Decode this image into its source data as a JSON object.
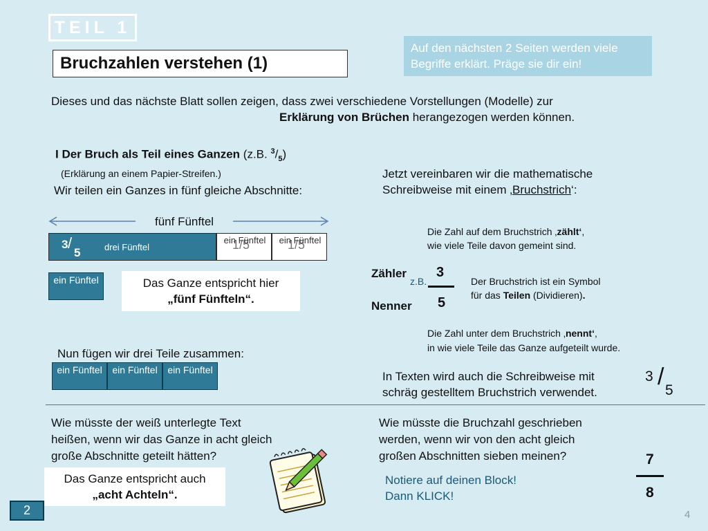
{
  "header": {
    "teil": "TEIL 1",
    "title": "Bruchzahlen verstehen (1)",
    "note": "Auf den nächsten 2 Seiten werden viele Begriffe erklärt. Präge sie dir ein!"
  },
  "intro": {
    "line1": "Dieses und das nächste Blatt sollen zeigen, dass zwei verschiedene Vorstellungen (Modelle) zur",
    "line2_bold": "Erklärung von Brüchen",
    "line2_rest": " herangezogen werden können."
  },
  "section1": {
    "heading_bold": "I Der Bruch als Teil eines Ganzen",
    "heading_rest": " (z.B. ",
    "heading_num": "3",
    "heading_den": "5",
    "heading_close": ")",
    "sub": "(Erklärung an einem Papier-Streifen.)",
    "divide_text": "Wir teilen ein Ganzes in fünf gleiche Abschnitte:",
    "arrow_label": "fünf Fünftel"
  },
  "strip": {
    "dark_num": "3",
    "dark_den": "5",
    "dark_label": "drei Fünftel",
    "light_segments": [
      {
        "label": "ein Fünftel",
        "frac": "1/5"
      },
      {
        "label": "ein Fünftel",
        "frac": "1/5"
      }
    ]
  },
  "single_tile": "ein Fünftel",
  "ganzes_box": {
    "line1": "Das Ganze entspricht hier",
    "line2": "„fünf Fünfteln“."
  },
  "combine": {
    "text": "Nun fügen wir drei Teile zusammen:",
    "tiles": [
      "ein Fünftel",
      "ein Fünftel",
      "ein Fünftel"
    ]
  },
  "right": {
    "intro_line1": "Jetzt vereinbaren wir die mathematische",
    "intro_line2_pre": "Schreibweise mit einem ‚",
    "intro_line2_u": "Bruchstrich",
    "intro_line2_post": "‘:",
    "zahl_top_pre": "Die Zahl auf dem Bruchstrich ‚",
    "zahl_top_b": "zählt‘",
    "zahl_top_post": ",",
    "zahl_top_line2": "wie viele Teile davon  gemeint sind.",
    "zaehler": "Zähler",
    "nenner": "Nenner",
    "zb": "z.B.",
    "num": "3",
    "den": "5",
    "symbol_line1": "Der Bruchstrich ist ein Symbol",
    "symbol_line2_pre": "für das ",
    "symbol_line2_b": "Teilen",
    "symbol_line2_mid": " (Dividieren)",
    "symbol_line2_b2": ".",
    "unter_pre": "Die Zahl unter dem Bruchstrich ‚",
    "unter_b": "nennt‘",
    "unter_post": ",",
    "unter_line2": "in wie viele Teile das Ganze aufgeteilt wurde.",
    "texts_line1": "In Texten wird auch die Schreibweise mit",
    "texts_line2": "schräg gestelltem Bruchstrich verwendet.",
    "slash_num": "3",
    "slash_den": "5"
  },
  "bottom_left": {
    "q1": "Wie müsste der weiß unterlegte Text",
    "q2": "heißen, wenn wir das Ganze in acht gleich",
    "q3": "große Abschnitte geteilt hätten?",
    "ans1": "Das Ganze entspricht auch",
    "ans2": "„acht Achteln“."
  },
  "bottom_right": {
    "q1": "Wie müsste die Bruchzahl geschrieben",
    "q2": "werden, wenn wir von den acht gleich",
    "q3": "großen Abschnitten sieben meinen?",
    "hint1": "Notiere auf deinen Block!",
    "hint2": "Dann KLICK!",
    "num": "7",
    "den": "8"
  },
  "nav": {
    "button": "2",
    "page_number": "4"
  },
  "icons": {
    "notepad": "notepad-pencil-icon"
  },
  "colors": {
    "background": "#d7ebf3",
    "tile": "#2f7a96",
    "note": "#a9d4e3"
  }
}
